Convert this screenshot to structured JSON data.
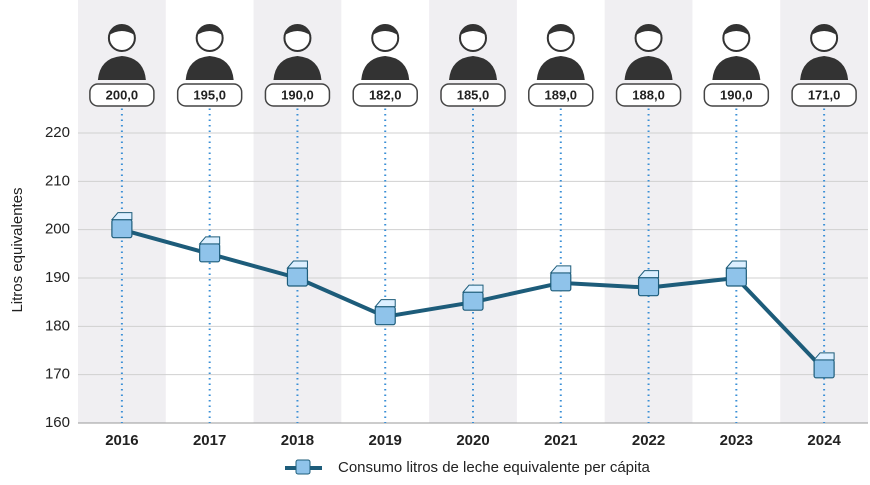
{
  "chart_data": {
    "type": "line",
    "categories": [
      "2016",
      "2017",
      "2018",
      "2019",
      "2020",
      "2021",
      "2022",
      "2023",
      "2024"
    ],
    "series": [
      {
        "name": "Consumo litros de leche equivalente per cápita",
        "color": "#1d5c7a",
        "values": [
          200,
          195,
          190,
          182,
          185,
          189,
          188,
          190,
          171
        ],
        "value_labels": [
          "200,0",
          "195,0",
          "190,0",
          "182,0",
          "185,0",
          "189,0",
          "188,0",
          "190,0",
          "171,0"
        ]
      }
    ],
    "y_label": "Litros equivalentes",
    "ylim": [
      160,
      220
    ],
    "yticks": [
      160,
      170,
      180,
      190,
      200,
      210,
      220
    ],
    "grid": true
  }
}
